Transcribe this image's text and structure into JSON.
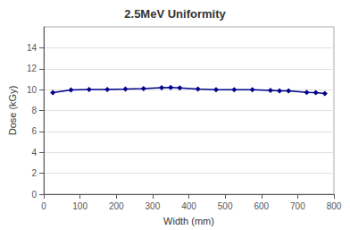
{
  "chart_data": {
    "type": "line",
    "title": "2.5MeV Uniformity",
    "x_label": "Width (mm)",
    "y_label": "Dose (kGy)",
    "x": [
      25,
      75,
      125,
      175,
      225,
      275,
      325,
      350,
      375,
      425,
      475,
      525,
      575,
      625,
      650,
      675,
      725,
      750,
      775
    ],
    "values": [
      9.72,
      9.97,
      10.01,
      10.02,
      10.05,
      10.1,
      10.18,
      10.2,
      10.15,
      10.05,
      9.99,
      9.99,
      9.98,
      9.93,
      9.88,
      9.88,
      9.73,
      9.72,
      9.63
    ],
    "color": "#00008B",
    "marker": "diamond",
    "xlim": [
      0,
      800
    ],
    "xticks": [
      0,
      100,
      200,
      300,
      400,
      500,
      600,
      700,
      800
    ],
    "ylim": [
      0,
      16
    ],
    "yticks": [
      0,
      2,
      4,
      6,
      8,
      10,
      12,
      14
    ],
    "grid": true
  }
}
